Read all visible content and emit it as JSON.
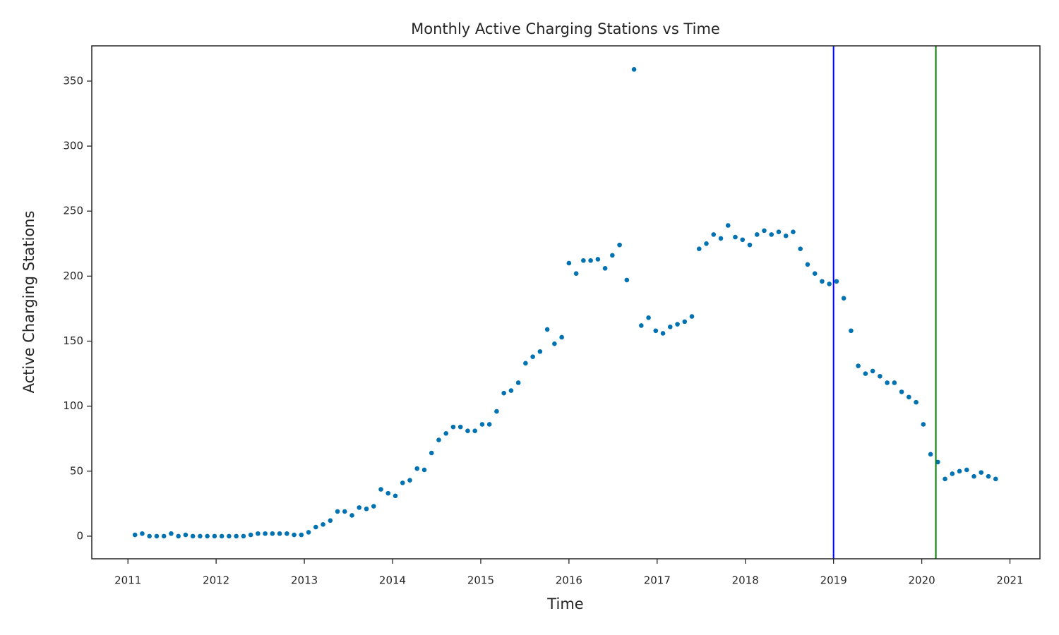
{
  "chart_data": {
    "type": "scatter",
    "title": "Monthly Active Charging Stations vs Time",
    "x_label": "Time",
    "y_label": "Active Charging Stations",
    "color": "#0072b2",
    "x": [
      2011.08,
      2011.162,
      2011.244,
      2011.326,
      2011.408,
      2011.49,
      2011.572,
      2011.654,
      2011.736,
      2011.818,
      2011.9,
      2011.982,
      2012.064,
      2012.146,
      2012.228,
      2012.31,
      2012.392,
      2012.474,
      2012.556,
      2012.638,
      2012.72,
      2012.802,
      2012.884,
      2012.966,
      2013.048,
      2013.13,
      2013.212,
      2013.294,
      2013.376,
      2013.458,
      2013.54,
      2013.622,
      2013.704,
      2013.786,
      2013.868,
      2013.95,
      2014.032,
      2014.114,
      2014.196,
      2014.278,
      2014.36,
      2014.442,
      2014.524,
      2014.606,
      2014.688,
      2014.77,
      2014.852,
      2014.934,
      2015.016,
      2015.098,
      2015.18,
      2015.262,
      2015.344,
      2015.426,
      2015.508,
      2015.59,
      2015.672,
      2015.754,
      2015.836,
      2015.918,
      2016.0,
      2016.082,
      2016.164,
      2016.246,
      2016.328,
      2016.41,
      2016.492,
      2016.574,
      2016.656,
      2016.738,
      2016.82,
      2016.902,
      2016.984,
      2017.066,
      2017.148,
      2017.23,
      2017.312,
      2017.394,
      2017.476,
      2017.558,
      2017.64,
      2017.722,
      2017.804,
      2017.886,
      2017.968,
      2018.05,
      2018.132,
      2018.214,
      2018.296,
      2018.378,
      2018.46,
      2018.542,
      2018.624,
      2018.706,
      2018.788,
      2018.87,
      2018.952,
      2019.034,
      2019.116,
      2019.198,
      2019.28,
      2019.362,
      2019.444,
      2019.526,
      2019.608,
      2019.69,
      2019.772,
      2019.854,
      2019.936,
      2020.018,
      2020.1,
      2020.182,
      2020.264,
      2020.346,
      2020.428,
      2020.51,
      2020.592,
      2020.674,
      2020.756,
      2020.838
    ],
    "values": [
      1,
      2,
      0,
      0,
      0,
      2,
      0,
      1,
      0,
      0,
      0,
      0,
      0,
      0,
      0,
      0,
      1,
      2,
      2,
      2,
      2,
      2,
      1,
      1,
      3,
      7,
      9,
      12,
      19,
      19,
      16,
      22,
      21,
      23,
      36,
      33,
      31,
      41,
      43,
      52,
      51,
      64,
      74,
      79,
      84,
      84,
      81,
      81,
      86,
      86,
      96,
      110,
      112,
      118,
      133,
      138,
      142,
      159,
      148,
      153,
      210,
      202,
      212,
      212,
      213,
      206,
      216,
      224,
      197,
      359,
      162,
      168,
      158,
      156,
      161,
      163,
      165,
      169,
      221,
      225,
      232,
      229,
      239,
      230,
      228,
      224,
      232,
      235,
      232,
      234,
      231,
      234,
      221,
      209,
      202,
      196,
      194,
      196,
      183,
      158,
      131,
      125,
      127,
      123,
      118,
      118,
      111,
      107,
      103,
      86,
      63,
      57,
      44,
      48,
      50,
      51,
      46,
      49,
      46,
      44
    ],
    "vlines": [
      {
        "x": 2019.0,
        "color": "#0000ff"
      },
      {
        "x": 2020.16,
        "color": "#007f00"
      }
    ],
    "xlim": [
      2010.59,
      2021.34
    ],
    "ylim": [
      -17.4,
      377.1
    ],
    "xticks": [
      2011,
      2012,
      2013,
      2014,
      2015,
      2016,
      2017,
      2018,
      2019,
      2020,
      2021
    ],
    "yticks": [
      0,
      50,
      100,
      150,
      200,
      250,
      300,
      350
    ],
    "grid": false
  }
}
